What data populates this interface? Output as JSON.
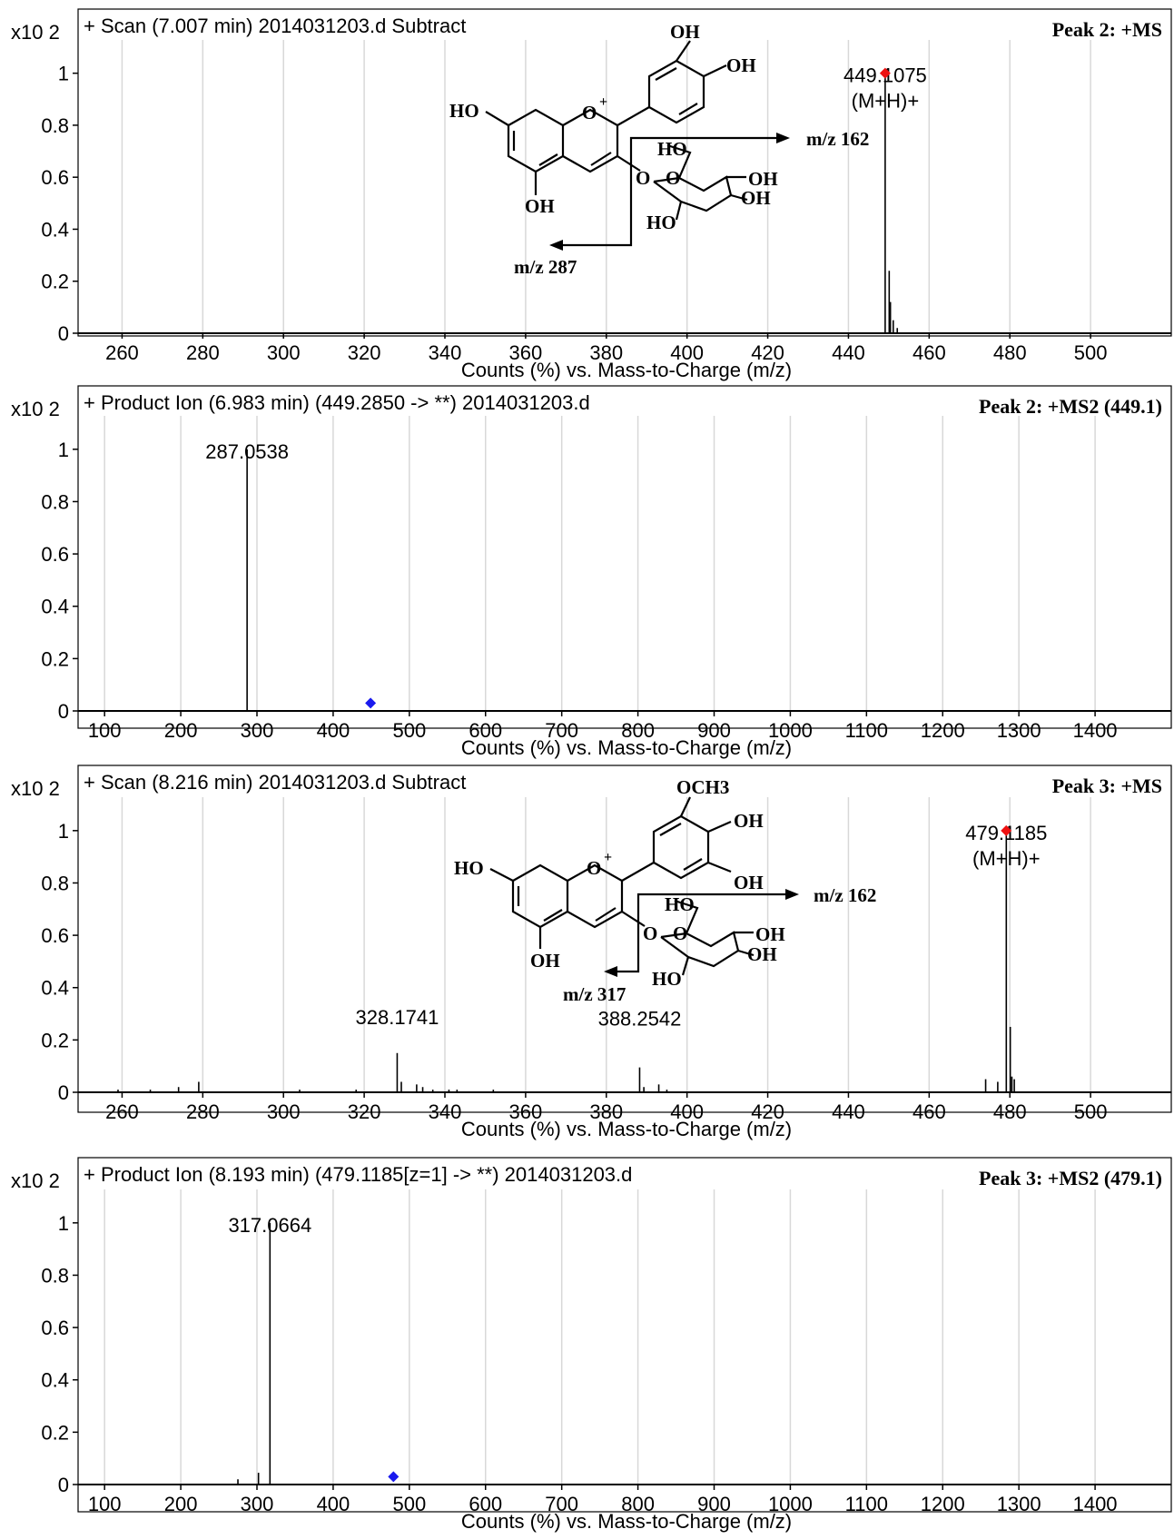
{
  "colors": {
    "grid": "#d8d8d8",
    "trace": "#000000",
    "precursor_red": "#ee1111",
    "precursor_blue": "#1a1aee"
  },
  "chart_data": [
    {
      "type": "line",
      "header": "+ Scan (7.007 min) 2014031203.d  Subtract",
      "peak_label": "Peak 2: +MS",
      "y_multiplier": "x10 2",
      "xlabel": "Counts (%) vs. Mass-to-Charge (m/z)",
      "xlim": [
        250,
        520
      ],
      "ylim": [
        0,
        1.1
      ],
      "x_ticks": [
        260,
        280,
        300,
        320,
        340,
        360,
        380,
        400,
        420,
        440,
        460,
        480,
        500
      ],
      "y_ticks": [
        0,
        0.2,
        0.4,
        0.6,
        0.8,
        1
      ],
      "y_tick_labels": [
        "0",
        "0.2",
        "0.4",
        "0.6",
        "0.8",
        "1"
      ],
      "peaks": [
        {
          "mz": 449.1,
          "intensity": 1.0
        },
        {
          "mz": 450.1,
          "intensity": 0.24
        },
        {
          "mz": 450.4,
          "intensity": 0.12
        },
        {
          "mz": 451.1,
          "intensity": 0.05
        },
        {
          "mz": 452.1,
          "intensity": 0.02
        }
      ],
      "annotations": [
        {
          "text": "449.1075",
          "mz": 449.1075
        },
        {
          "text": "(M+H)+",
          "mz": 449.1075
        }
      ],
      "precursor_marker": {
        "mz": 449.1,
        "intensity": 1.0,
        "color": "red"
      }
    },
    {
      "type": "line",
      "header": "+ Product Ion (6.983 min) (449.2850 -> **) 2014031203.d",
      "peak_label": "Peak 2: +MS2 (449.1)",
      "y_multiplier": "x10 2",
      "xlabel": "Counts (%) vs. Mass-to-Charge (m/z)",
      "xlim": [
        70,
        1500
      ],
      "ylim": [
        0,
        1.1
      ],
      "x_ticks": [
        100,
        200,
        300,
        400,
        500,
        600,
        700,
        800,
        900,
        1000,
        1100,
        1200,
        1300,
        1400
      ],
      "y_ticks": [
        0,
        0.2,
        0.4,
        0.6,
        0.8,
        1
      ],
      "y_tick_labels": [
        "0",
        "0.2",
        "0.4",
        "0.6",
        "0.8",
        "1"
      ],
      "peaks": [
        {
          "mz": 287.0538,
          "intensity": 1.0
        }
      ],
      "annotations": [
        {
          "text": "287.0538",
          "mz": 287.0538
        }
      ],
      "precursor_marker": {
        "mz": 449.1,
        "intensity": 0.03,
        "color": "blue"
      }
    },
    {
      "type": "line",
      "header": "+ Scan (8.216 min) 2014031203.d  Subtract",
      "peak_label": "Peak 3: +MS",
      "y_multiplier": "x10 2",
      "xlabel": "Counts (%) vs. Mass-to-Charge (m/z)",
      "xlim": [
        250,
        520
      ],
      "ylim": [
        0,
        1.1
      ],
      "x_ticks": [
        260,
        280,
        300,
        320,
        340,
        360,
        380,
        400,
        420,
        440,
        460,
        480,
        500
      ],
      "y_ticks": [
        0,
        0.2,
        0.4,
        0.6,
        0.8,
        1
      ],
      "y_tick_labels": [
        "0",
        "0.2",
        "0.4",
        "0.6",
        "0.8",
        "1"
      ],
      "peaks": [
        {
          "mz": 259,
          "intensity": 0.01
        },
        {
          "mz": 267,
          "intensity": 0.01
        },
        {
          "mz": 274,
          "intensity": 0.02
        },
        {
          "mz": 279,
          "intensity": 0.04
        },
        {
          "mz": 304,
          "intensity": 0.01
        },
        {
          "mz": 318,
          "intensity": 0.01
        },
        {
          "mz": 328.1741,
          "intensity": 0.15
        },
        {
          "mz": 329.2,
          "intensity": 0.04
        },
        {
          "mz": 333,
          "intensity": 0.03
        },
        {
          "mz": 334.5,
          "intensity": 0.02
        },
        {
          "mz": 337,
          "intensity": 0.01
        },
        {
          "mz": 341,
          "intensity": 0.01
        },
        {
          "mz": 343,
          "intensity": 0.01
        },
        {
          "mz": 352,
          "intensity": 0.01
        },
        {
          "mz": 388.2542,
          "intensity": 0.095
        },
        {
          "mz": 389.3,
          "intensity": 0.02
        },
        {
          "mz": 393,
          "intensity": 0.03
        },
        {
          "mz": 395,
          "intensity": 0.01
        },
        {
          "mz": 474,
          "intensity": 0.05
        },
        {
          "mz": 477,
          "intensity": 0.04
        },
        {
          "mz": 479.1185,
          "intensity": 1.0
        },
        {
          "mz": 480.1,
          "intensity": 0.25
        },
        {
          "mz": 480.5,
          "intensity": 0.06
        },
        {
          "mz": 481.1,
          "intensity": 0.05
        }
      ],
      "annotations": [
        {
          "text": "479.1185",
          "mz": 479.1185
        },
        {
          "text": "(M+H)+",
          "mz": 479.1185
        },
        {
          "text": "328.1741",
          "mz": 328.1741
        },
        {
          "text": "388.2542",
          "mz": 388.2542
        }
      ],
      "precursor_marker": {
        "mz": 479.1,
        "intensity": 1.0,
        "color": "red"
      }
    },
    {
      "type": "line",
      "header": "+ Product Ion (8.193 min) (479.1185[z=1] -> **) 2014031203.d",
      "peak_label": "Peak 3: +MS2 (479.1)",
      "y_multiplier": "x10 2",
      "xlabel": "Counts (%) vs. Mass-to-Charge (m/z)",
      "xlim": [
        70,
        1500
      ],
      "ylim": [
        0,
        1.1
      ],
      "x_ticks": [
        100,
        200,
        300,
        400,
        500,
        600,
        700,
        800,
        900,
        1000,
        1100,
        1200,
        1300,
        1400
      ],
      "y_ticks": [
        0,
        0.2,
        0.4,
        0.6,
        0.8,
        1
      ],
      "y_tick_labels": [
        "0",
        "0.2",
        "0.4",
        "0.6",
        "0.8",
        "1"
      ],
      "peaks": [
        {
          "mz": 275,
          "intensity": 0.02
        },
        {
          "mz": 302,
          "intensity": 0.045
        },
        {
          "mz": 317.0664,
          "intensity": 1.0
        }
      ],
      "annotations": [
        {
          "text": "317.0664",
          "mz": 317.0664
        }
      ],
      "precursor_marker": {
        "mz": 479.1,
        "intensity": 0.03,
        "color": "blue"
      }
    }
  ],
  "structures": [
    {
      "labels": {
        "top_oh": "OH",
        "right_oh": "OH",
        "ho_left": "HO",
        "oplus": "O",
        "plus": "+",
        "bottom_oh": "OH",
        "link_o": "O",
        "sugar_ho_top": "HO",
        "ring_o": "O",
        "sugar_oh1": "OH",
        "sugar_oh2": "OH",
        "sugar_ho_bottom": "HO",
        "frag_a": "m/z 162",
        "frag_b": "m/z 287"
      }
    },
    {
      "labels": {
        "top_och3": "OCH3",
        "right_oh": "OH",
        "ho_left": "HO",
        "oplus": "O",
        "plus": "+",
        "lower_oh": "OH",
        "bottom_oh": "OH",
        "link_o": "O",
        "sugar_ho_top": "HO",
        "ring_o": "O",
        "sugar_oh1": "OH",
        "sugar_oh2": "OH",
        "sugar_ho_bottom": "HO",
        "frag_a": "m/z 162",
        "frag_b": "m/z 317"
      }
    }
  ]
}
